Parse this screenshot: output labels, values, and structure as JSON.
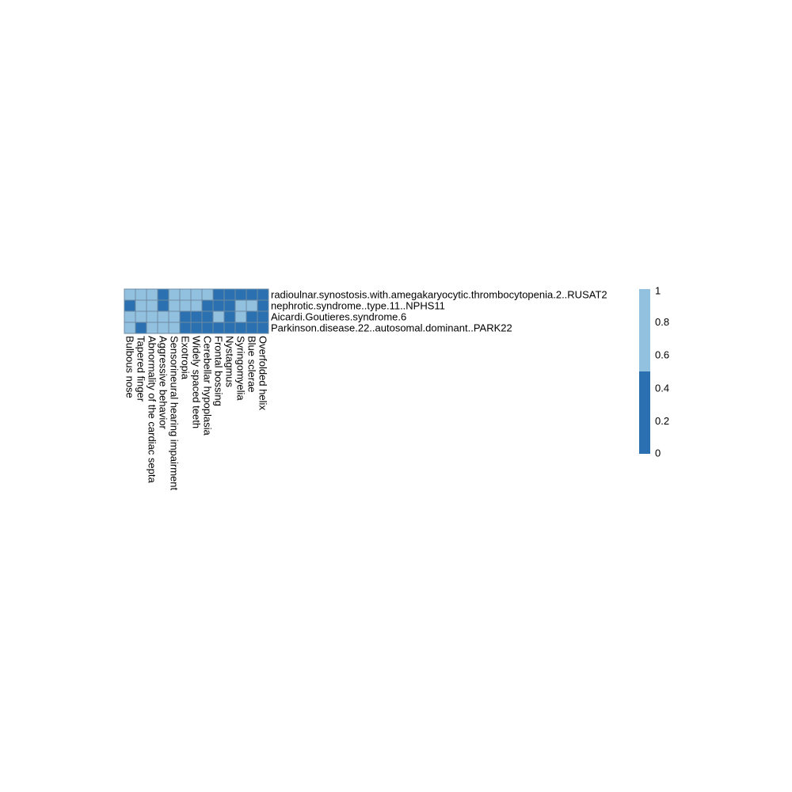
{
  "chart_data": {
    "type": "heatmap",
    "title": "",
    "rows": [
      "radioulnar.synostosis.with.amegakaryocytic.thrombocytopenia.2..RUSAT2",
      "nephrotic.syndrome..type.11..NPHS11",
      "Aicardi.Goutieres.syndrome.6",
      "Parkinson.disease.22..autosomal.dominant..PARK22"
    ],
    "columns": [
      "Bulbous nose",
      "Tapered finger",
      "Abnormality of the cardiac septa",
      "Aggressive behavior",
      "Sensorineural hearing impairment",
      "Exotropia",
      "Widely spaced teeth",
      "Cerebellar hypoplasia",
      "Frontal bossing",
      "Nystagmus",
      "Syringomyelia",
      "Blue sclerae",
      "Overfolded helix"
    ],
    "values": [
      [
        1,
        1,
        1,
        0,
        1,
        1,
        1,
        1,
        0,
        0,
        0,
        0,
        0
      ],
      [
        0,
        1,
        1,
        0,
        1,
        1,
        1,
        0,
        0,
        0,
        1,
        1,
        0
      ],
      [
        1,
        1,
        1,
        1,
        1,
        0,
        0,
        0,
        1,
        0,
        1,
        0,
        0
      ],
      [
        1,
        0,
        1,
        1,
        1,
        0,
        0,
        0,
        0,
        0,
        0,
        0,
        0
      ]
    ],
    "legend": {
      "ticks": [
        "1",
        "0.8",
        "0.6",
        "0.4",
        "0.2",
        "0"
      ],
      "tick_values": [
        1,
        0.8,
        0.6,
        0.4,
        0.2,
        0
      ],
      "bins": [
        {
          "from": 0,
          "to": 0.5,
          "color": "#2b71b2"
        },
        {
          "from": 0.5,
          "to": 1,
          "color": "#92c0df"
        }
      ],
      "placement": "right"
    },
    "colors": {
      "value_0": "#2b71b2",
      "value_1": "#92c0df",
      "cell_border": "#6e8ba3"
    }
  }
}
